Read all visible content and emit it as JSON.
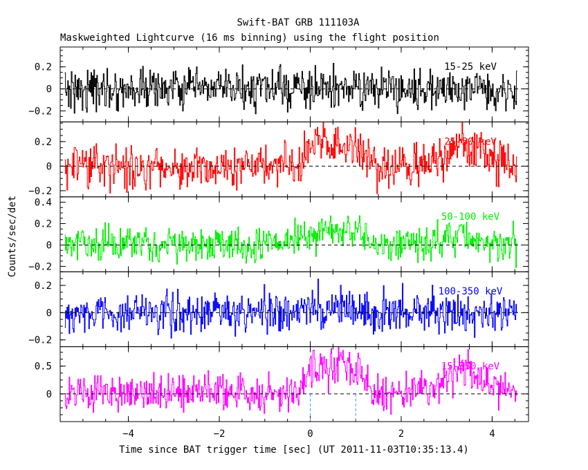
{
  "chart_data": {
    "type": "line",
    "title": "Swift-BAT GRB 111103A",
    "subtitle": "Maskweighted Lightcurve (16 ms binning) using the flight position",
    "xlabel": "Time since BAT trigger time [sec] (UT 2011-11-03T10:35:13.4)",
    "ylabel": "Counts/sec/det",
    "xlim": [
      -5.5,
      4.8
    ],
    "x_ticks": [
      -4,
      -2,
      0,
      2,
      4
    ],
    "x_tick_labels": [
      "−4",
      "−2",
      "0",
      "2",
      "4"
    ],
    "data_x_range": [
      -5.4,
      4.55
    ],
    "bin_sec": 0.016,
    "grid": false,
    "reference_lines": {
      "zero_level": 0,
      "interval_start": 0,
      "interval_end": 1.0
    },
    "panels": [
      {
        "name": "15-25 keV",
        "color": "#000000",
        "ylim": [
          -0.3,
          0.38
        ],
        "y_ticks": [
          -0.2,
          0,
          0.2
        ],
        "y_tick_labels": [
          "−0.2",
          "0",
          "0.2"
        ],
        "noise": 0.09,
        "profile": [
          [
            -5.4,
            0.0
          ],
          [
            4.55,
            0.0
          ]
        ]
      },
      {
        "name": "25-50 keV",
        "color": "#ff0000",
        "ylim": [
          -0.25,
          0.36
        ],
        "y_ticks": [
          -0.2,
          0,
          0.2
        ],
        "y_tick_labels": [
          "−0.2",
          "0",
          "0.2"
        ],
        "noise": 0.085,
        "profile": [
          [
            -5.4,
            0.0
          ],
          [
            -0.3,
            0.0
          ],
          [
            0.0,
            0.15
          ],
          [
            0.4,
            0.18
          ],
          [
            0.9,
            0.16
          ],
          [
            1.2,
            0.08
          ],
          [
            1.5,
            -0.02
          ],
          [
            2.0,
            -0.03
          ],
          [
            2.6,
            0.02
          ],
          [
            3.0,
            0.08
          ],
          [
            3.3,
            0.18
          ],
          [
            3.6,
            0.14
          ],
          [
            4.0,
            0.03
          ],
          [
            4.55,
            0.02
          ]
        ]
      },
      {
        "name": "50-100 keV",
        "color": "#00ee00",
        "ylim": [
          -0.25,
          0.45
        ],
        "y_ticks": [
          -0.2,
          0,
          0.2,
          0.4
        ],
        "y_tick_labels": [
          "−0.2",
          "0",
          "0.2",
          "0.4"
        ],
        "noise": 0.08,
        "profile": [
          [
            -5.4,
            0.0
          ],
          [
            -1.0,
            0.0
          ],
          [
            -0.6,
            0.05
          ],
          [
            0.0,
            0.1
          ],
          [
            0.5,
            0.16
          ],
          [
            0.9,
            0.14
          ],
          [
            1.2,
            0.04
          ],
          [
            1.6,
            0.0
          ],
          [
            3.0,
            0.03
          ],
          [
            3.3,
            0.1
          ],
          [
            3.6,
            0.04
          ],
          [
            4.55,
            0.0
          ]
        ]
      },
      {
        "name": "100-350 keV",
        "color": "#0000ff",
        "ylim": [
          -0.25,
          0.3
        ],
        "y_ticks": [
          -0.2,
          0,
          0.2
        ],
        "y_tick_labels": [
          "−0.2",
          "0",
          "0.2"
        ],
        "noise": 0.075,
        "profile": [
          [
            -5.4,
            0.0
          ],
          [
            -0.3,
            0.0
          ],
          [
            0.3,
            0.05
          ],
          [
            0.8,
            0.04
          ],
          [
            1.2,
            0.0
          ],
          [
            4.55,
            0.0
          ]
        ]
      },
      {
        "name": "15-350 keV",
        "color": "#ff00ff",
        "ylim": [
          -0.5,
          0.85
        ],
        "y_ticks": [
          0,
          0.5
        ],
        "y_tick_labels": [
          "0",
          "0.5"
        ],
        "noise": 0.17,
        "profile": [
          [
            -5.4,
            0.0
          ],
          [
            -0.4,
            0.0
          ],
          [
            -0.1,
            0.3
          ],
          [
            0.4,
            0.5
          ],
          [
            0.8,
            0.52
          ],
          [
            1.1,
            0.35
          ],
          [
            1.4,
            0.05
          ],
          [
            1.8,
            -0.05
          ],
          [
            2.3,
            0.0
          ],
          [
            2.7,
            0.1
          ],
          [
            3.0,
            0.25
          ],
          [
            3.3,
            0.45
          ],
          [
            3.6,
            0.3
          ],
          [
            4.0,
            0.05
          ],
          [
            4.55,
            0.0
          ]
        ]
      }
    ]
  }
}
